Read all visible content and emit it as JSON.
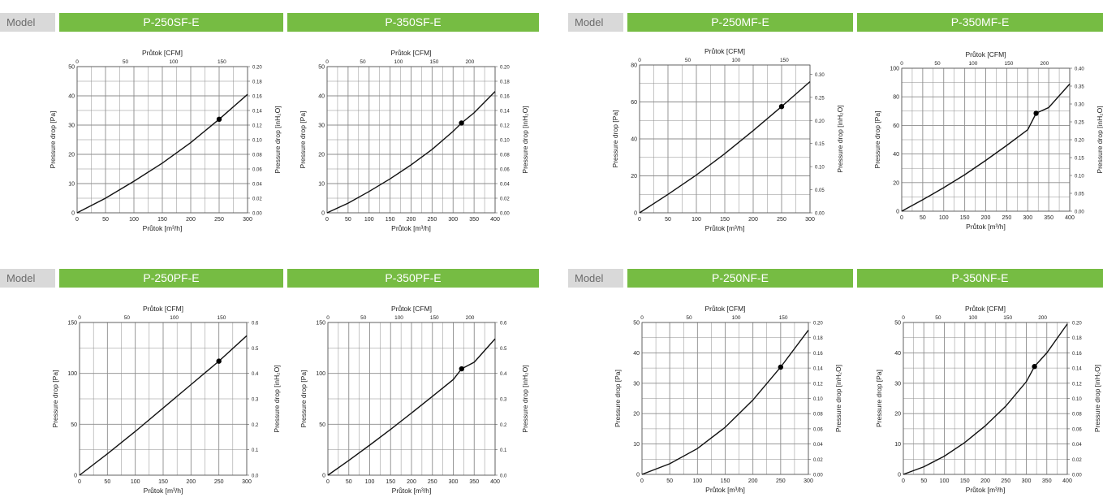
{
  "tables": [
    {
      "model_label": "Model",
      "names": [
        "P-250SF-E",
        "P-350SF-E"
      ]
    },
    {
      "model_label": "Model",
      "names": [
        "P-250MF-E",
        "P-350MF-E"
      ]
    },
    {
      "model_label": "Model",
      "names": [
        "P-250PF-E",
        "P-350PF-E"
      ]
    },
    {
      "model_label": "Model",
      "names": [
        "P-250NF-E",
        "P-350NF-E"
      ]
    }
  ],
  "colors": {
    "header_green": "#76bc43",
    "model_gray": "#d9d9d9",
    "curve": "#111111",
    "grid": "#8c8c8c"
  },
  "chart_data": [
    {
      "type": "line",
      "xlabel": "Průtok [m³/h]",
      "x2label": "Průtok [CFM]",
      "ylabel": "Pressure drop [Pa]",
      "y2label": "Pressure drop [inH₂O]",
      "xlim": [
        0,
        300
      ],
      "ylim": [
        0,
        50
      ],
      "x2lim": [
        0,
        176.6
      ],
      "y2lim": [
        0,
        0.2
      ],
      "xticks": [
        0,
        50,
        100,
        150,
        200,
        250,
        300
      ],
      "yticks": [
        0,
        10,
        20,
        30,
        40,
        50
      ],
      "x2ticks": [
        0,
        50,
        100,
        150
      ],
      "y2ticks": [
        0.0,
        0.02,
        0.04,
        0.06,
        0.08,
        0.1,
        0.12,
        0.14,
        0.16,
        0.18,
        0.2
      ],
      "y2fmt": 2,
      "series": [
        {
          "x": [
            0,
            50,
            100,
            150,
            200,
            250,
            300
          ],
          "y": [
            0,
            5,
            10.8,
            17,
            24,
            32,
            40.5
          ]
        }
      ],
      "point": {
        "x": 250,
        "y": 32
      }
    },
    {
      "type": "line",
      "xlabel": "Průtok [m³/h]",
      "x2label": "Průtok [CFM]",
      "ylabel": "Pressure drop [Pa]",
      "y2label": "Pressure drop [inH₂O]",
      "xlim": [
        0,
        400
      ],
      "ylim": [
        0,
        50
      ],
      "x2lim": [
        0,
        235.4
      ],
      "y2lim": [
        0,
        0.2
      ],
      "xticks": [
        0,
        50,
        100,
        150,
        200,
        250,
        300,
        350,
        400
      ],
      "yticks": [
        0,
        10,
        20,
        30,
        40,
        50
      ],
      "x2ticks": [
        0,
        50,
        100,
        150,
        200
      ],
      "y2ticks": [
        0.0,
        0.02,
        0.04,
        0.06,
        0.08,
        0.1,
        0.12,
        0.14,
        0.16,
        0.18,
        0.2
      ],
      "y2fmt": 2,
      "series": [
        {
          "x": [
            0,
            50,
            100,
            150,
            200,
            250,
            300,
            320,
            350,
            400
          ],
          "y": [
            0,
            3.3,
            7.3,
            11.6,
            16.4,
            21.7,
            27.9,
            30.7,
            34.2,
            41.5
          ]
        }
      ],
      "point": {
        "x": 320,
        "y": 30.7
      }
    },
    {
      "type": "line",
      "xlabel": "Průtok [m³/h]",
      "x2label": "Průtok [CFM]",
      "ylabel": "Pressure drop [Pa]",
      "y2label": "Pressure drop [inH₂O]",
      "xlim": [
        0,
        300
      ],
      "ylim": [
        0,
        80
      ],
      "x2lim": [
        0,
        176.6
      ],
      "y2lim": [
        0,
        0.32
      ],
      "xticks": [
        0,
        50,
        100,
        150,
        200,
        250,
        300
      ],
      "yticks": [
        0,
        20,
        40,
        60,
        80
      ],
      "x2ticks": [
        0,
        50,
        100,
        150
      ],
      "y2ticks": [
        0.0,
        0.05,
        0.1,
        0.15,
        0.2,
        0.25,
        0.3
      ],
      "y2fmt": 2,
      "series": [
        {
          "x": [
            0,
            50,
            100,
            150,
            200,
            250,
            300
          ],
          "y": [
            0,
            10,
            20.5,
            32,
            44.5,
            57.5,
            71
          ]
        }
      ],
      "point": {
        "x": 250,
        "y": 57.5
      }
    },
    {
      "type": "line",
      "xlabel": "Průtok [m³/h]",
      "x2label": "Průtok [CFM]",
      "ylabel": "Pressure drop [Pa]",
      "y2label": "Pressure drop [inH₂O]",
      "xlim": [
        0,
        400
      ],
      "ylim": [
        0,
        100
      ],
      "x2lim": [
        0,
        235.4
      ],
      "y2lim": [
        0,
        0.4
      ],
      "xticks": [
        0,
        50,
        100,
        150,
        200,
        250,
        300,
        350,
        400
      ],
      "yticks": [
        0,
        20,
        40,
        60,
        80,
        100
      ],
      "x2ticks": [
        0,
        50,
        100,
        150,
        200
      ],
      "y2ticks": [
        0.0,
        0.05,
        0.1,
        0.15,
        0.2,
        0.25,
        0.3,
        0.35,
        0.4
      ],
      "y2fmt": 2,
      "series": [
        {
          "x": [
            0,
            50,
            100,
            150,
            200,
            250,
            300,
            320,
            350,
            400
          ],
          "y": [
            0,
            8,
            16.5,
            25.5,
            35.5,
            46,
            57,
            68.5,
            72.5,
            89
          ]
        }
      ],
      "point": {
        "x": 320,
        "y": 68.5
      }
    },
    {
      "type": "line",
      "xlabel": "Průtok [m³/h]",
      "x2label": "Průtok [CFM]",
      "ylabel": "Pressure drop [Pa]",
      "y2label": "Pressure drop [inH₂O]",
      "xlim": [
        0,
        300
      ],
      "ylim": [
        0,
        150
      ],
      "x2lim": [
        0,
        176.6
      ],
      "y2lim": [
        0,
        0.6
      ],
      "xticks": [
        0,
        50,
        100,
        150,
        200,
        250,
        300
      ],
      "yticks": [
        0,
        50,
        100,
        150
      ],
      "x2ticks": [
        0,
        50,
        100,
        150
      ],
      "y2ticks": [
        0.0,
        0.1,
        0.2,
        0.3,
        0.4,
        0.5,
        0.6
      ],
      "y2fmt": 1,
      "series": [
        {
          "x": [
            0,
            50,
            100,
            150,
            200,
            250,
            300
          ],
          "y": [
            0,
            21,
            43,
            66,
            89,
            112,
            137
          ]
        }
      ],
      "point": {
        "x": 250,
        "y": 112
      }
    },
    {
      "type": "line",
      "xlabel": "Průtok [m³/h]",
      "x2label": "Průtok [CFM]",
      "ylabel": "Pressure drop [Pa]",
      "y2label": "Pressure drop [inH₂O]",
      "xlim": [
        0,
        400
      ],
      "ylim": [
        0,
        150
      ],
      "x2lim": [
        0,
        235.4
      ],
      "y2lim": [
        0,
        0.6
      ],
      "xticks": [
        0,
        50,
        100,
        150,
        200,
        250,
        300,
        350,
        400
      ],
      "yticks": [
        0,
        50,
        100,
        150
      ],
      "x2ticks": [
        0,
        50,
        100,
        150,
        200
      ],
      "y2ticks": [
        0.0,
        0.1,
        0.2,
        0.3,
        0.4,
        0.5,
        0.6
      ],
      "y2fmt": 1,
      "series": [
        {
          "x": [
            0,
            50,
            100,
            150,
            200,
            250,
            300,
            320,
            350,
            400
          ],
          "y": [
            0,
            14.5,
            29.5,
            45,
            61,
            77.5,
            94,
            104.5,
            111,
            134
          ]
        }
      ],
      "point": {
        "x": 320,
        "y": 104.5
      }
    },
    {
      "type": "line",
      "xlabel": "Průtok [m³/h]",
      "x2label": "Průtok [CFM]",
      "ylabel": "Pressure drop [Pa]",
      "y2label": "Pressure drop [inH₂O]",
      "xlim": [
        0,
        300
      ],
      "ylim": [
        0,
        50
      ],
      "x2lim": [
        0,
        176.6
      ],
      "y2lim": [
        0,
        0.2
      ],
      "xticks": [
        0,
        50,
        100,
        150,
        200,
        250,
        300
      ],
      "yticks": [
        0,
        10,
        20,
        30,
        40,
        50
      ],
      "x2ticks": [
        0,
        50,
        100,
        150
      ],
      "y2ticks": [
        0.0,
        0.02,
        0.04,
        0.06,
        0.08,
        0.1,
        0.12,
        0.14,
        0.16,
        0.18,
        0.2
      ],
      "y2fmt": 2,
      "series": [
        {
          "x": [
            0,
            50,
            100,
            150,
            200,
            250,
            300
          ],
          "y": [
            0,
            3.5,
            8.5,
            15.5,
            24.5,
            35.3,
            47.5
          ]
        }
      ],
      "point": {
        "x": 250,
        "y": 35.3
      }
    },
    {
      "type": "line",
      "xlabel": "Průtok [m³/h]",
      "x2label": "Průtok [CFM]",
      "ylabel": "Pressure drop [Pa]",
      "y2label": "Pressure drop [inH₂O]",
      "xlim": [
        0,
        400
      ],
      "ylim": [
        0,
        50
      ],
      "x2lim": [
        0,
        235.4
      ],
      "y2lim": [
        0,
        0.2
      ],
      "xticks": [
        0,
        50,
        100,
        150,
        200,
        250,
        300,
        350,
        400
      ],
      "yticks": [
        0,
        10,
        20,
        30,
        40,
        50
      ],
      "x2ticks": [
        0,
        50,
        100,
        150,
        200
      ],
      "y2ticks": [
        0.0,
        0.02,
        0.04,
        0.06,
        0.08,
        0.1,
        0.12,
        0.14,
        0.16,
        0.18,
        0.2
      ],
      "y2fmt": 2,
      "series": [
        {
          "x": [
            0,
            50,
            100,
            150,
            200,
            250,
            300,
            320,
            350,
            400
          ],
          "y": [
            0,
            2.5,
            6,
            10.5,
            16,
            22.5,
            30.5,
            35.5,
            40,
            49.5
          ]
        }
      ],
      "point": {
        "x": 320,
        "y": 35.5
      }
    }
  ]
}
